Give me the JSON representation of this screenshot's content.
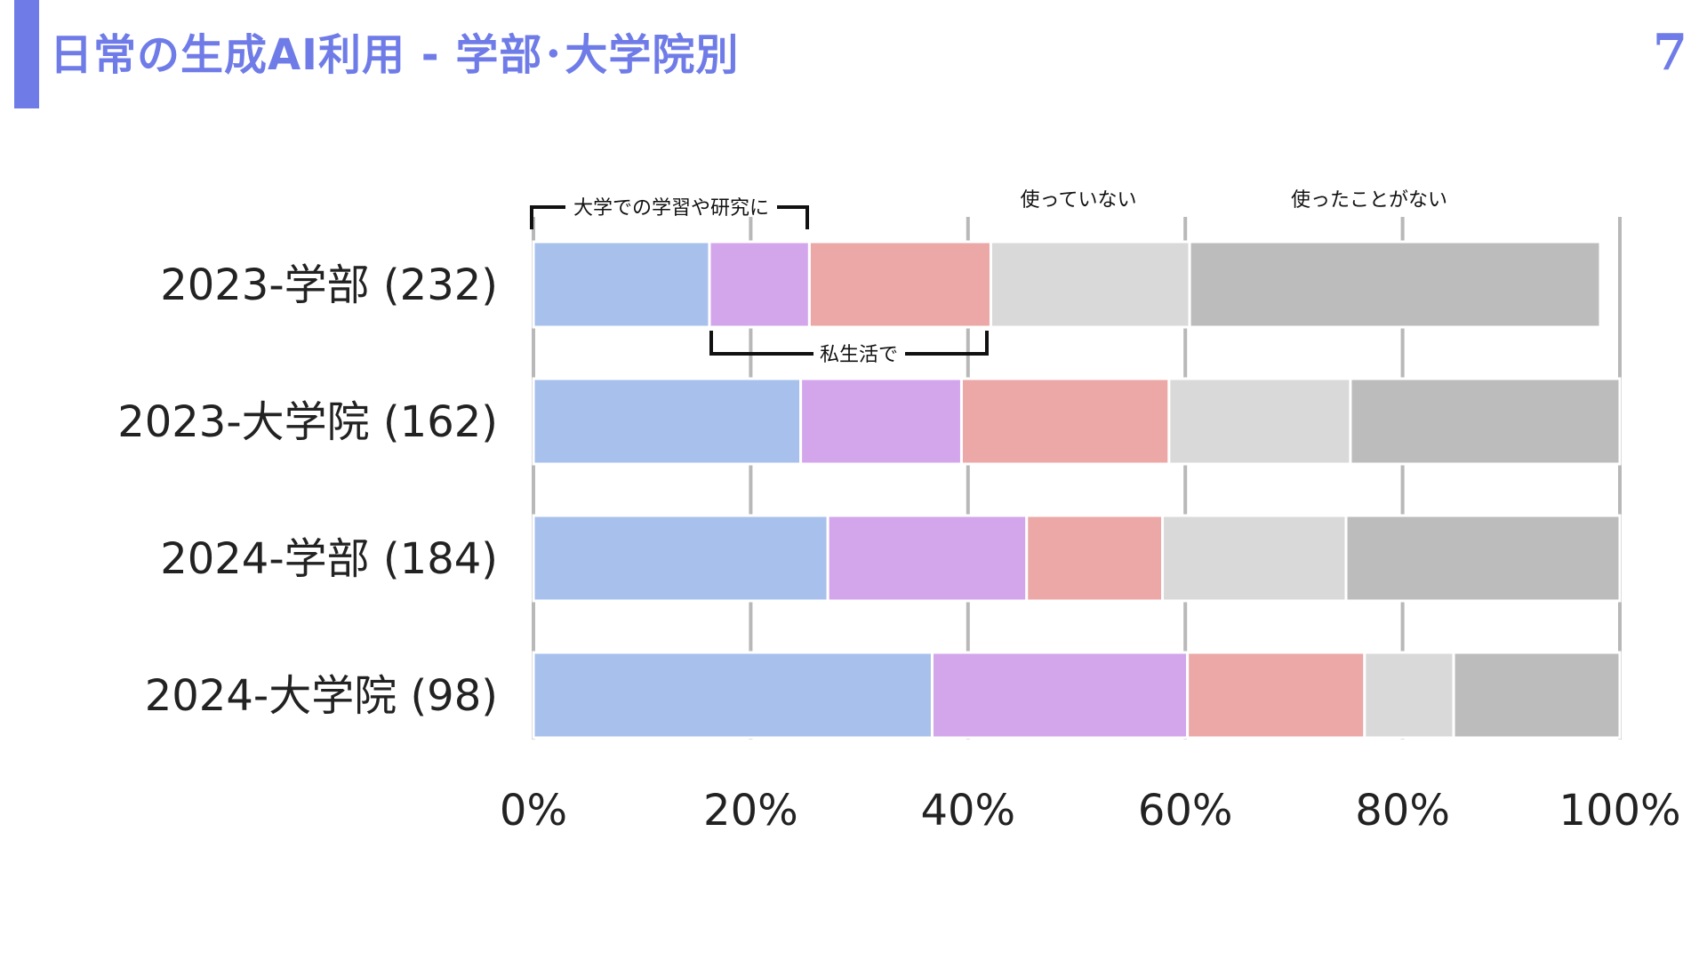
{
  "slide": {
    "title": "日常の生成AI利用 - 学部･大学院別",
    "page_number": "7",
    "accent_color": "#6f7ce8",
    "title_color": "#6f7ce8"
  },
  "chart_data": {
    "type": "bar",
    "orientation": "horizontal",
    "stacked": true,
    "categories": [
      "2023-学部 (232)",
      "2023-大学院 (162)",
      "2024-学部 (184)",
      "2024-大学院 (98)"
    ],
    "series": [
      {
        "color": "#a7c1ec",
        "values": [
          16.2,
          24.6,
          27.1,
          36.7
        ]
      },
      {
        "color": "#d3a6ec",
        "values": [
          9.2,
          14.8,
          18.3,
          23.5
        ]
      },
      {
        "color": "#eca7a7",
        "values": [
          16.7,
          19.1,
          12.5,
          16.3
        ]
      },
      {
        "name": "使っていない",
        "color": "#d9d9d9",
        "values": [
          18.3,
          16.7,
          16.9,
          8.2
        ]
      },
      {
        "name": "使ったことがない",
        "color": "#bcbcbc",
        "values": [
          37.8,
          24.8,
          25.2,
          15.3
        ]
      }
    ],
    "xlim": [
      0,
      100
    ],
    "x_ticks": [
      "0%",
      "20%",
      "40%",
      "60%",
      "80%",
      "100%"
    ],
    "grid": true,
    "annotations": {
      "study_bracket": "大学での学習や研究に",
      "private_bracket": "私生活で",
      "not_using": "使っていない",
      "never_used": "使ったことがない"
    }
  }
}
